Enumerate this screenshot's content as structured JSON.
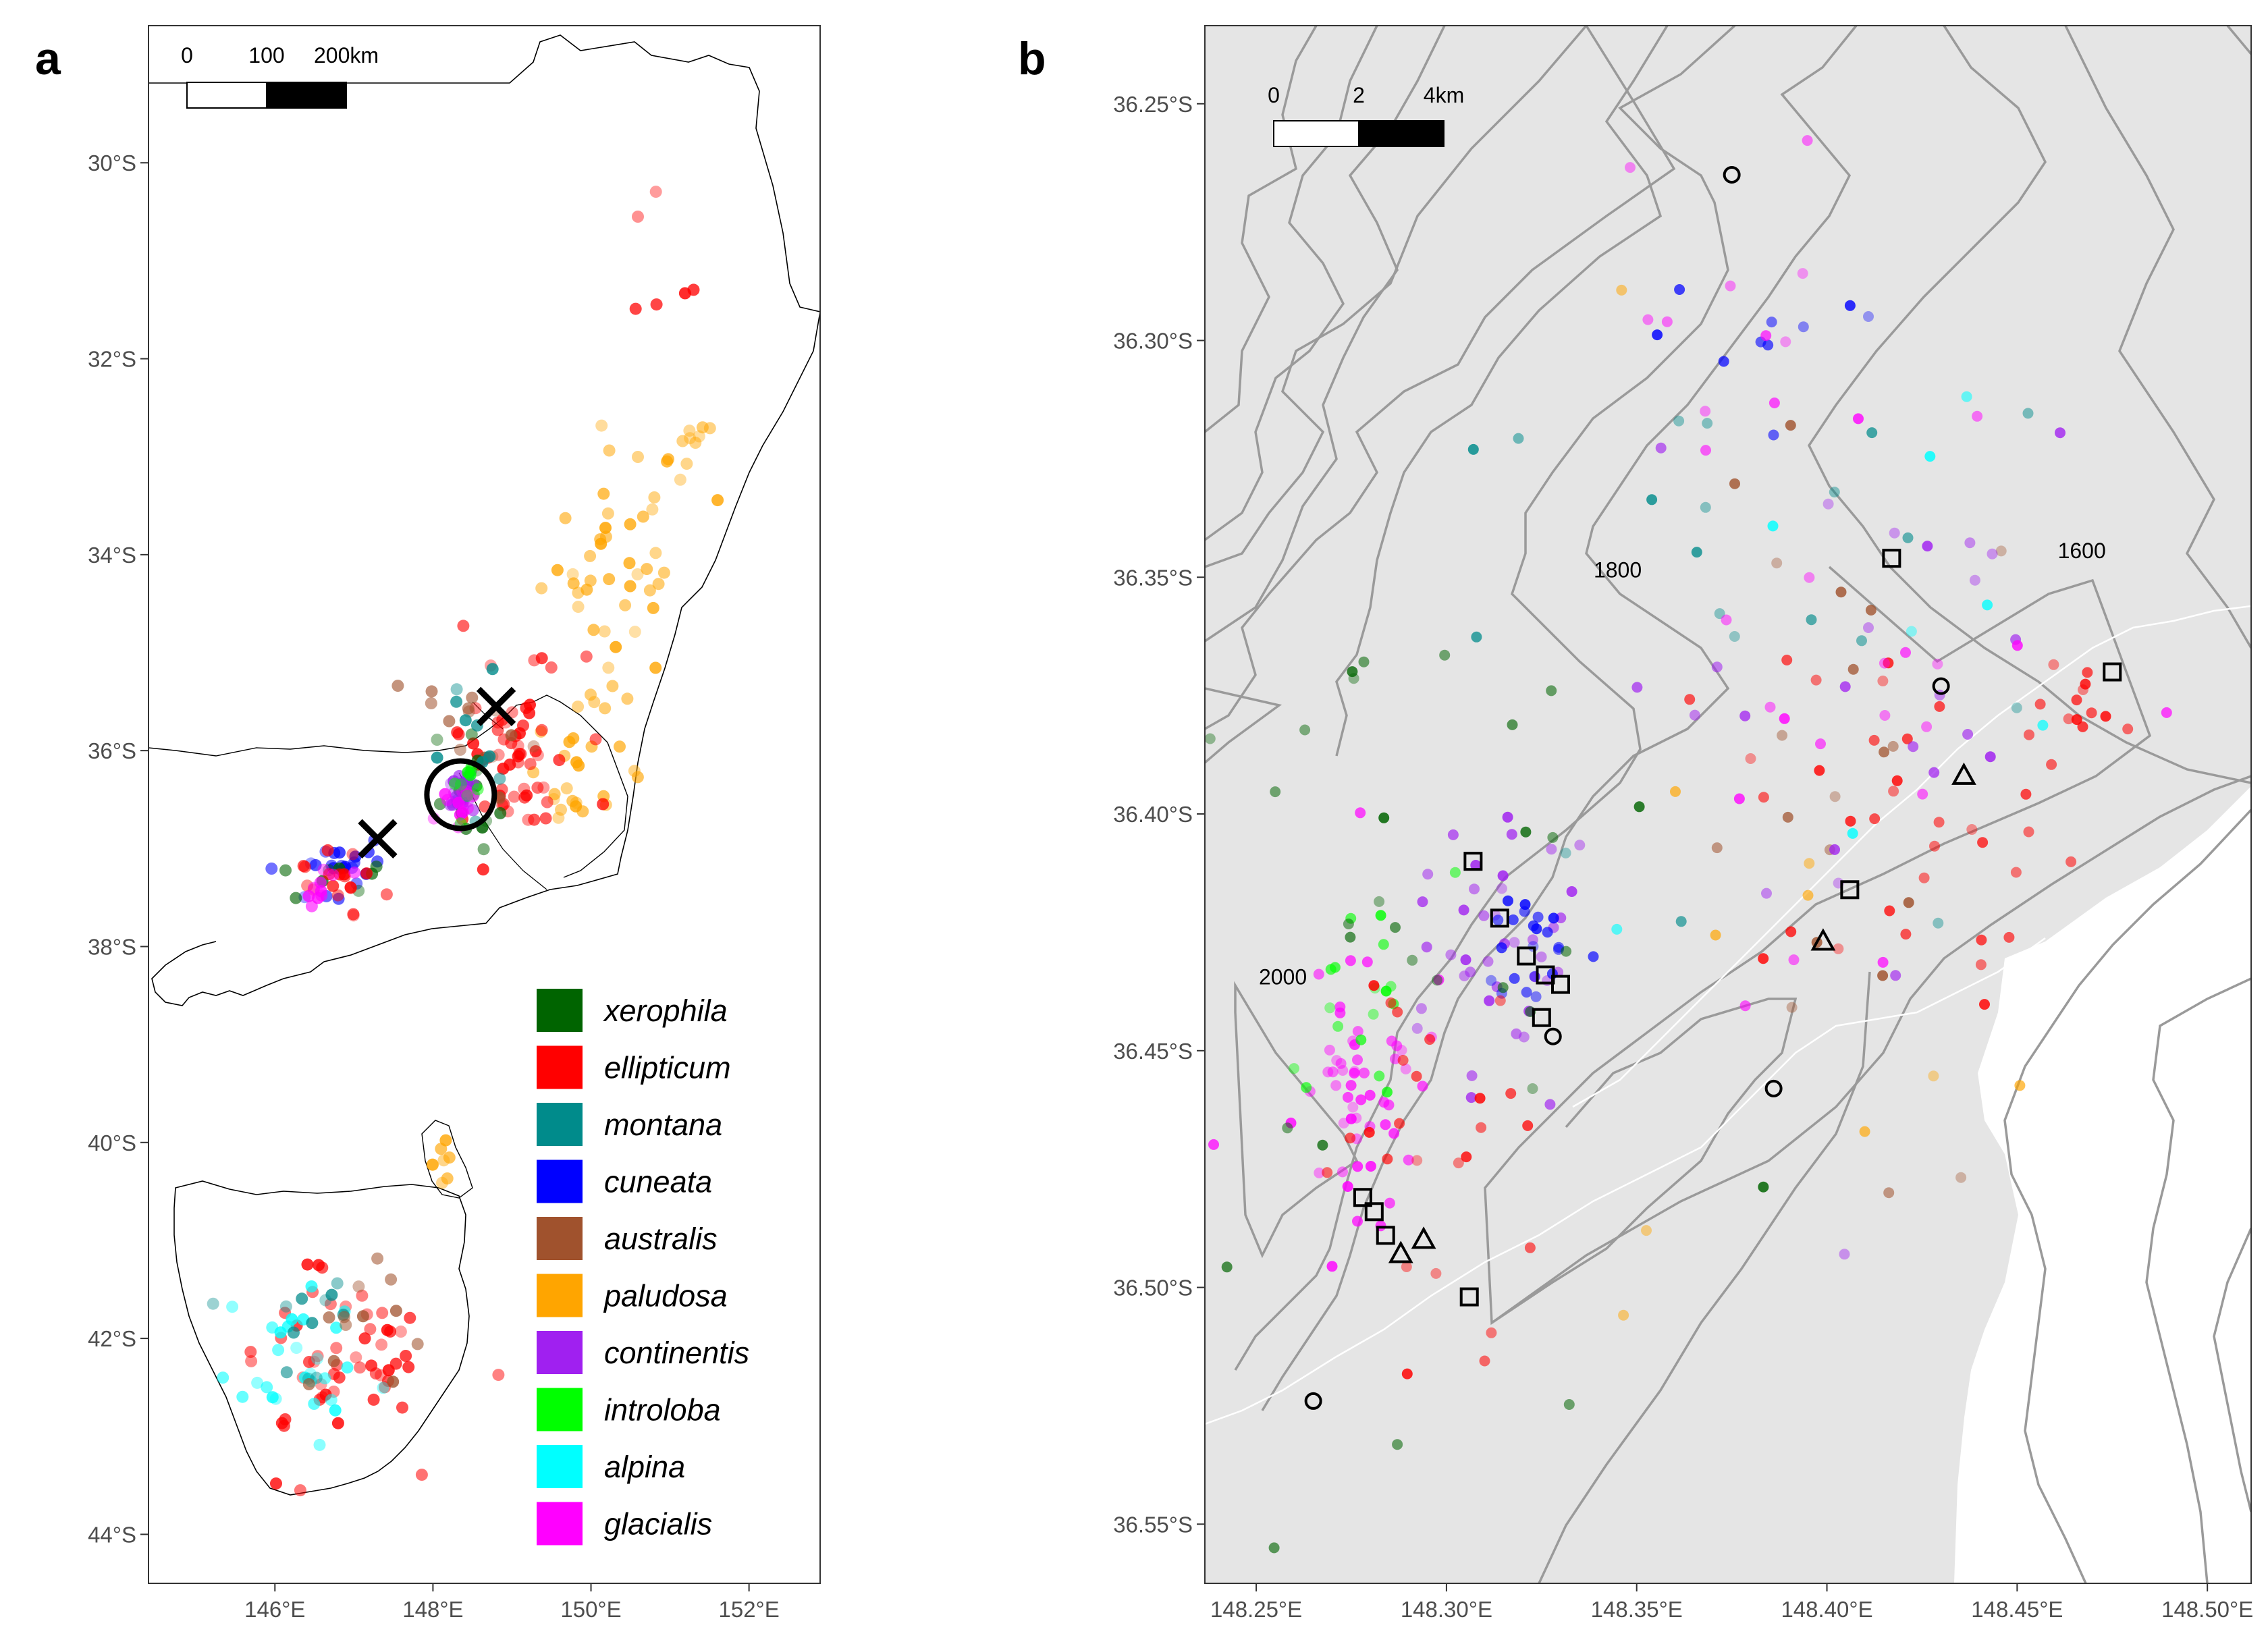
{
  "panels": {
    "a": {
      "label": "a",
      "lon_range": [
        144.4,
        152.9
      ],
      "lat_range": [
        -44.5,
        -28.6
      ],
      "x_ticks": [
        146,
        148,
        150,
        152
      ],
      "x_tick_labels": [
        "146°E",
        "148°E",
        "150°E",
        "152°E"
      ],
      "y_ticks": [
        -30,
        -32,
        -34,
        -36,
        -38,
        -40,
        -42,
        -44
      ],
      "y_tick_labels": [
        "30°S",
        "32°S",
        "34°S",
        "36°S",
        "38°S",
        "40°S",
        "42°S",
        "44°S"
      ],
      "scale_bar_labels": [
        "0",
        "100",
        "200km"
      ],
      "markers": [
        {
          "type": "cross",
          "lon": 148.8,
          "lat": -35.55
        },
        {
          "type": "cross",
          "lon": 147.3,
          "lat": -36.9
        },
        {
          "type": "circle",
          "lon": 148.35,
          "lat": -36.45
        }
      ],
      "species_clusters": [
        {
          "species": "paludosa",
          "lon": 150.3,
          "lat": -34.0,
          "spread": [
            0.9,
            1.3
          ],
          "n": 45
        },
        {
          "species": "paludosa",
          "lon": 149.8,
          "lat": -36.3,
          "spread": [
            0.6,
            0.9
          ],
          "n": 25
        },
        {
          "species": "paludosa",
          "lon": 151.3,
          "lat": -33.0,
          "spread": [
            0.3,
            0.4
          ],
          "n": 10
        },
        {
          "species": "ellipticum",
          "lon": 149.0,
          "lat": -36.0,
          "spread": [
            0.8,
            1.0
          ],
          "n": 60
        },
        {
          "species": "australis",
          "lon": 148.6,
          "lat": -35.8,
          "spread": [
            0.6,
            0.8
          ],
          "n": 15
        },
        {
          "species": "xerophila",
          "lon": 148.5,
          "lat": -36.4,
          "spread": [
            0.35,
            0.5
          ],
          "n": 18
        },
        {
          "species": "montana",
          "lon": 148.5,
          "lat": -36.0,
          "spread": [
            0.5,
            0.6
          ],
          "n": 12
        },
        {
          "species": "continentis",
          "lon": 148.35,
          "lat": -36.45,
          "spread": [
            0.18,
            0.25
          ],
          "n": 25
        },
        {
          "species": "glacialis",
          "lon": 148.35,
          "lat": -36.5,
          "spread": [
            0.2,
            0.25
          ],
          "n": 12
        },
        {
          "species": "introloba",
          "lon": 148.4,
          "lat": -36.35,
          "spread": [
            0.25,
            0.3
          ],
          "n": 8
        },
        {
          "species": "cuneata",
          "lon": 146.6,
          "lat": -37.2,
          "spread": [
            0.6,
            0.35
          ],
          "n": 22
        },
        {
          "species": "xerophila",
          "lon": 146.6,
          "lat": -37.3,
          "spread": [
            0.7,
            0.35
          ],
          "n": 8
        },
        {
          "species": "ellipticum",
          "lon": 146.8,
          "lat": -37.4,
          "spread": [
            0.7,
            0.4
          ],
          "n": 18
        },
        {
          "species": "glacialis",
          "lon": 146.6,
          "lat": -37.5,
          "spread": [
            0.5,
            0.4
          ],
          "n": 10
        },
        {
          "species": "ellipticum",
          "lon": 146.7,
          "lat": -42.2,
          "spread": [
            1.3,
            0.9
          ],
          "n": 55
        },
        {
          "species": "alpina",
          "lon": 146.3,
          "lat": -42.2,
          "spread": [
            0.9,
            0.8
          ],
          "n": 28
        },
        {
          "species": "montana",
          "lon": 146.5,
          "lat": -42.0,
          "spread": [
            0.9,
            0.7
          ],
          "n": 12
        },
        {
          "species": "australis",
          "lon": 147.0,
          "lat": -41.9,
          "spread": [
            1.0,
            0.6
          ],
          "n": 12
        },
        {
          "species": "paludosa",
          "lon": 148.15,
          "lat": -40.15,
          "spread": [
            0.15,
            0.25
          ],
          "n": 8
        },
        {
          "species": "ellipticum",
          "lon": 150.8,
          "lat": -31.0,
          "spread": [
            0.6,
            1.2
          ],
          "n": 6
        }
      ]
    },
    "b": {
      "label": "b",
      "lon_range": [
        148.2365,
        148.5115
      ],
      "lat_range": [
        -36.5625,
        -36.2335
      ],
      "x_ticks": [
        148.25,
        148.3,
        148.35,
        148.4,
        148.45,
        148.5
      ],
      "x_tick_labels": [
        "148.25°E",
        "148.30°E",
        "148.35°E",
        "148.40°E",
        "148.45°E",
        "148.50°E"
      ],
      "y_ticks": [
        -36.25,
        -36.3,
        -36.35,
        -36.4,
        -36.45,
        -36.5,
        -36.55
      ],
      "y_tick_labels": [
        "36.25°S",
        "36.30°S",
        "36.35°S",
        "36.40°S",
        "36.45°S",
        "36.50°S",
        "36.55°S"
      ],
      "scale_bar_labels": [
        "0",
        "2",
        "4km"
      ],
      "contour_labels": [
        {
          "text": "1800",
          "lon": 148.345,
          "lat": -36.35
        },
        {
          "text": "1600",
          "lon": 148.467,
          "lat": -36.346
        },
        {
          "text": "2000",
          "lon": 148.257,
          "lat": -36.436
        }
      ],
      "squares": [
        {
          "lon": 148.417,
          "lat": -36.346
        },
        {
          "lon": 148.475,
          "lat": -36.37
        },
        {
          "lon": 148.307,
          "lat": -36.41
        },
        {
          "lon": 148.314,
          "lat": -36.422
        },
        {
          "lon": 148.321,
          "lat": -36.43
        },
        {
          "lon": 148.326,
          "lat": -36.434
        },
        {
          "lon": 148.33,
          "lat": -36.436
        },
        {
          "lon": 148.325,
          "lat": -36.443
        },
        {
          "lon": 148.406,
          "lat": -36.416
        },
        {
          "lon": 148.278,
          "lat": -36.481
        },
        {
          "lon": 148.281,
          "lat": -36.484
        },
        {
          "lon": 148.284,
          "lat": -36.489
        },
        {
          "lon": 148.306,
          "lat": -36.502
        }
      ],
      "triangles": [
        {
          "lon": 148.436,
          "lat": -36.392
        },
        {
          "lon": 148.399,
          "lat": -36.427
        },
        {
          "lon": 148.294,
          "lat": -36.49
        },
        {
          "lon": 148.288,
          "lat": -36.493
        }
      ],
      "open_circles": [
        {
          "lon": 148.375,
          "lat": -36.265
        },
        {
          "lon": 148.43,
          "lat": -36.373
        },
        {
          "lon": 148.328,
          "lat": -36.447
        },
        {
          "lon": 148.386,
          "lat": -36.458
        },
        {
          "lon": 148.265,
          "lat": -36.524
        }
      ],
      "species_clusters": [
        {
          "species": "glacialis",
          "lon": 148.275,
          "lat": -36.455,
          "spread": [
            0.018,
            0.035
          ],
          "n": 55
        },
        {
          "species": "continentis",
          "lon": 148.31,
          "lat": -36.43,
          "spread": [
            0.03,
            0.03
          ],
          "n": 40
        },
        {
          "species": "cuneata",
          "lon": 148.322,
          "lat": -36.428,
          "spread": [
            0.012,
            0.015
          ],
          "n": 22
        },
        {
          "species": "introloba",
          "lon": 148.28,
          "lat": -36.44,
          "spread": [
            0.025,
            0.03
          ],
          "n": 18
        },
        {
          "species": "ellipticum",
          "lon": 148.29,
          "lat": -36.46,
          "spread": [
            0.03,
            0.04
          ],
          "n": 25
        },
        {
          "species": "xerophila",
          "lon": 148.3,
          "lat": -36.42,
          "spread": [
            0.08,
            0.08
          ],
          "n": 30
        },
        {
          "species": "australis",
          "lon": 148.4,
          "lat": -36.4,
          "spread": [
            0.06,
            0.08
          ],
          "n": 20
        },
        {
          "species": "montana",
          "lon": 148.38,
          "lat": -36.35,
          "spread": [
            0.08,
            0.08
          ],
          "n": 20
        },
        {
          "species": "ellipticum",
          "lon": 148.42,
          "lat": -36.4,
          "spread": [
            0.05,
            0.04
          ],
          "n": 35
        },
        {
          "species": "continentis",
          "lon": 148.41,
          "lat": -36.38,
          "spread": [
            0.07,
            0.07
          ],
          "n": 25
        },
        {
          "species": "glacialis",
          "lon": 148.41,
          "lat": -36.38,
          "spread": [
            0.07,
            0.07
          ],
          "n": 20
        },
        {
          "species": "ellipticum",
          "lon": 148.47,
          "lat": -36.375,
          "spread": [
            0.02,
            0.012
          ],
          "n": 12
        },
        {
          "species": "cuneata",
          "lon": 148.38,
          "lat": -36.3,
          "spread": [
            0.03,
            0.02
          ],
          "n": 10
        },
        {
          "species": "glacialis",
          "lon": 148.38,
          "lat": -36.29,
          "spread": [
            0.04,
            0.03
          ],
          "n": 10
        },
        {
          "species": "paludosa",
          "lon": 148.4,
          "lat": -36.43,
          "spread": [
            0.07,
            0.08
          ],
          "n": 10
        },
        {
          "species": "alpina",
          "lon": 148.39,
          "lat": -36.36,
          "spread": [
            0.08,
            0.08
          ],
          "n": 8
        }
      ]
    }
  },
  "legend": [
    {
      "label": "xerophila",
      "color": "#006400"
    },
    {
      "label": "ellipticum",
      "color": "#ff0000"
    },
    {
      "label": "montana",
      "color": "#008b8b"
    },
    {
      "label": "cuneata",
      "color": "#0000ff"
    },
    {
      "label": "australis",
      "color": "#a0522d"
    },
    {
      "label": "paludosa",
      "color": "#ffa500"
    },
    {
      "label": "continentis",
      "color": "#a020f0"
    },
    {
      "label": "introloba",
      "color": "#00ff00"
    },
    {
      "label": "alpina",
      "color": "#00ffff"
    },
    {
      "label": "glacialis",
      "color": "#ff00ff"
    }
  ]
}
